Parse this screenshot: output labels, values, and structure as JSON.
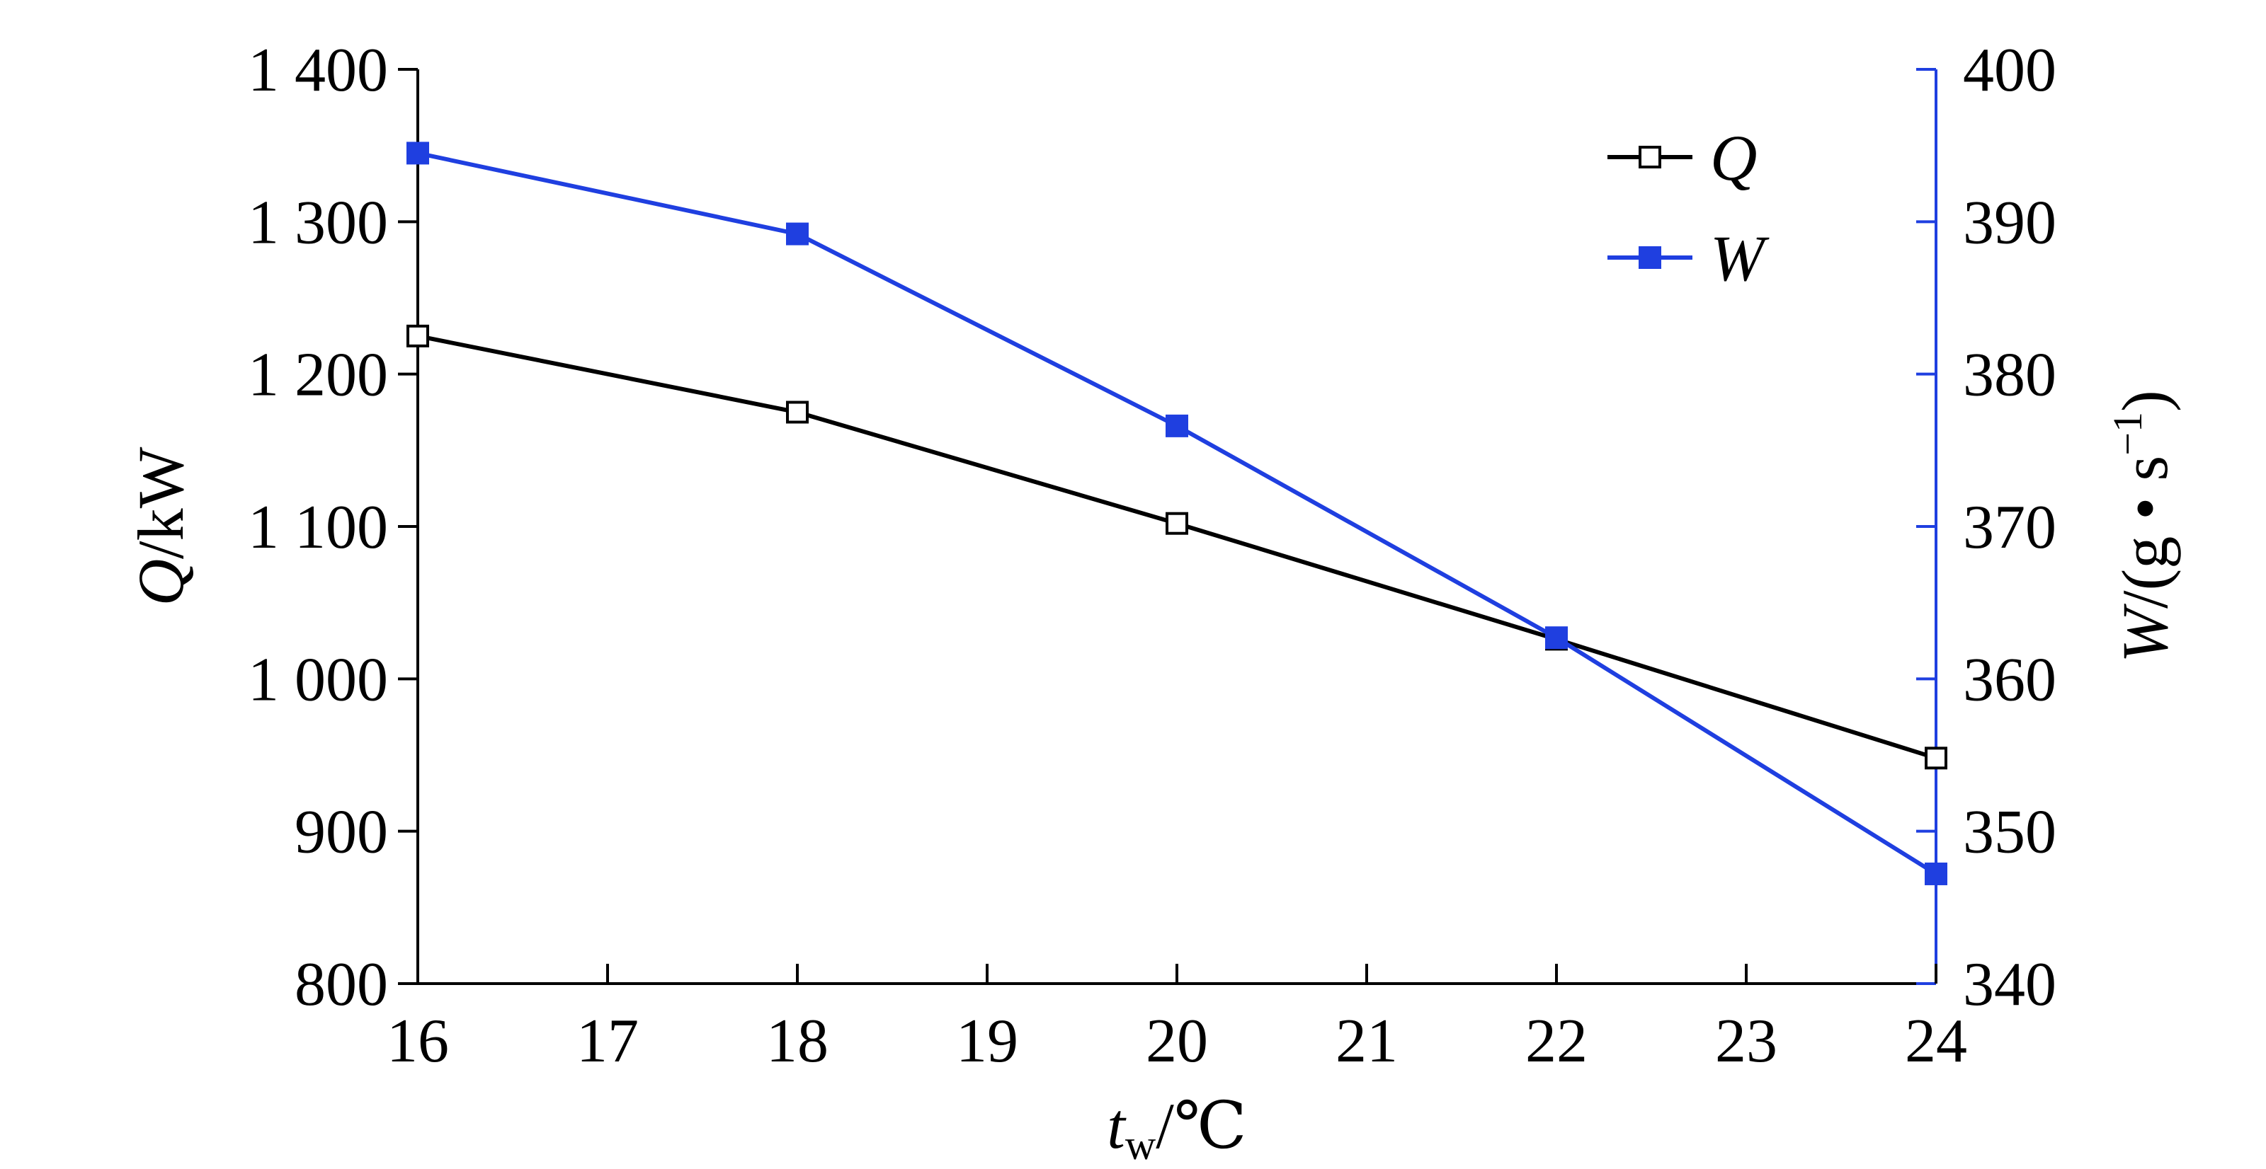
{
  "chart_data": {
    "type": "line",
    "x": [
      16,
      18,
      20,
      22,
      24
    ],
    "x_ticks": [
      "16",
      "17",
      "18",
      "19",
      "20",
      "21",
      "22",
      "23",
      "24"
    ],
    "xlim": [
      16,
      24
    ],
    "xlabel": {
      "main": "t",
      "sub": "w",
      "unit": "/℃"
    },
    "y_left": {
      "label": {
        "var": "Q",
        "unit": "/kW"
      },
      "ylim": [
        800,
        1400
      ],
      "ticks": [
        "800",
        "900",
        "1 000",
        "1 100",
        "1 200",
        "1 300",
        "1 400"
      ],
      "color": "#000000"
    },
    "y_right": {
      "label": {
        "var": "W",
        "unit": "/(g • s",
        "sup": "−1",
        "close": ")"
      },
      "ylim": [
        340,
        400
      ],
      "ticks": [
        "340",
        "350",
        "360",
        "370",
        "380",
        "390",
        "400"
      ],
      "color": "#1f3fe0"
    },
    "series": [
      {
        "name": "Q",
        "axis": "left",
        "values": [
          1225,
          1175,
          1102,
          1026,
          948
        ],
        "color": "#000000",
        "marker": "open-square"
      },
      {
        "name": "W",
        "axis": "right",
        "values": [
          394.5,
          389.2,
          376.6,
          362.7,
          347.2
        ],
        "color": "#1f3fe0",
        "marker": "filled-square"
      }
    ],
    "legend": {
      "placement": "top-right"
    },
    "grid": false
  }
}
